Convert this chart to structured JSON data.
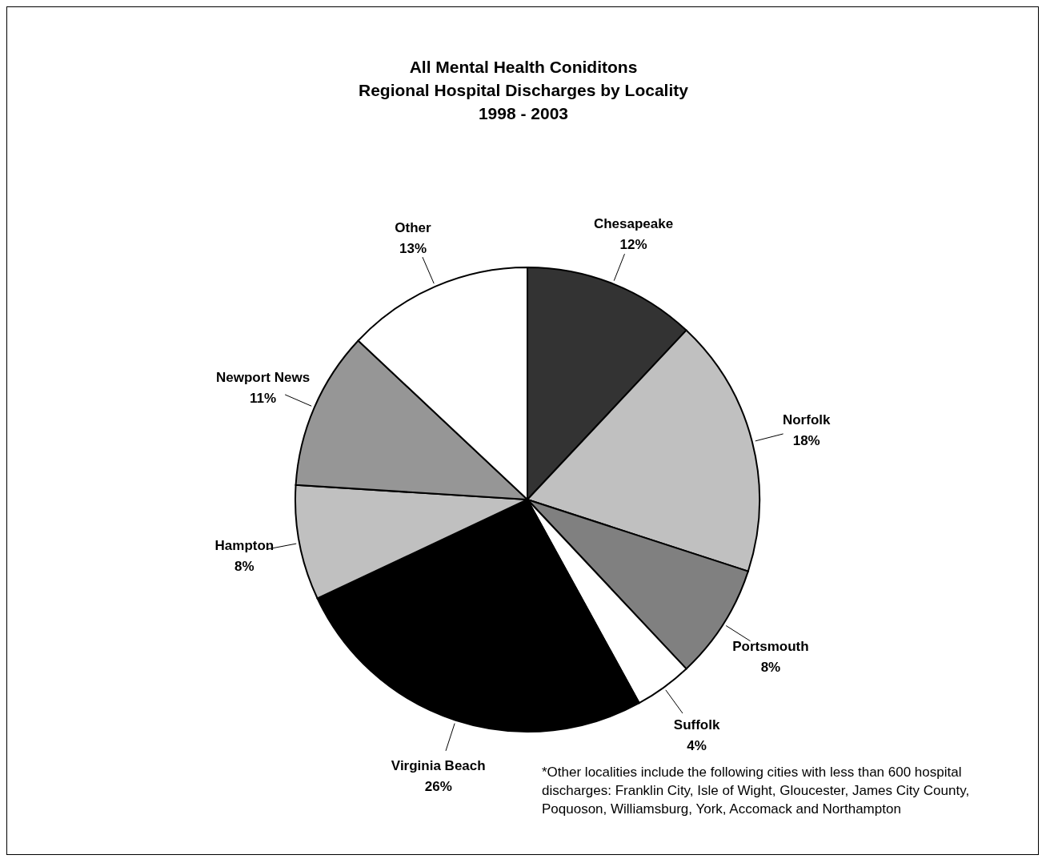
{
  "chart_data": {
    "type": "pie",
    "title": "All Mental Health Coniditons\nRegional Hospital Discharges by Locality\n1998 - 2003",
    "categories": [
      "Chesapeake",
      "Norfolk",
      "Portsmouth",
      "Suffolk",
      "Virginia Beach",
      "Hampton",
      "Newport News",
      "Other"
    ],
    "values": [
      12,
      18,
      8,
      4,
      26,
      8,
      11,
      13
    ],
    "value_labels": [
      "12%",
      "18%",
      "8%",
      "4%",
      "26%",
      "8%",
      "11%",
      "13%"
    ],
    "colors": [
      "#333333",
      "#c0c0c0",
      "#808080",
      "#ffffff",
      "#000000",
      "#c0c0c0",
      "#969696",
      "#ffffff"
    ],
    "legend": false,
    "annotations": [
      "*Other localities include the following cities with less than 600 hospital discharges: Franklin City, Isle of Wight, Gloucester, James City County, Poquoson, Williamsburg, York, Accomack and Northampton"
    ]
  }
}
